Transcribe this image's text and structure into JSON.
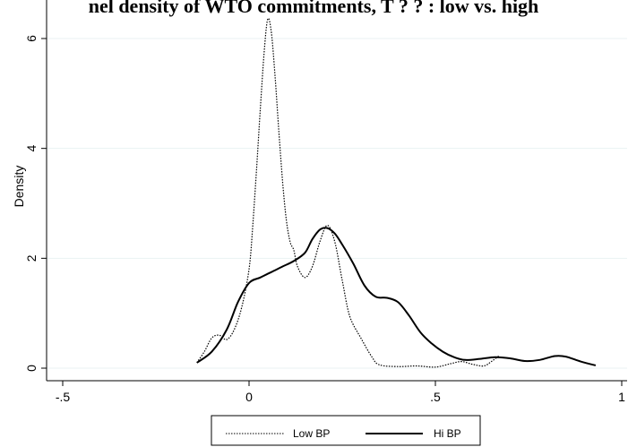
{
  "chart_data": {
    "type": "line",
    "title": "nel density of WTO commitments, T ? ? : low vs. high",
    "xlabel": "",
    "ylabel": "Density",
    "xlim": [
      -0.5,
      1.0
    ],
    "ylim": [
      0,
      6.5
    ],
    "x_ticks": [
      -0.5,
      0,
      0.5,
      1
    ],
    "x_tick_labels": [
      "-.5",
      "0",
      ".5",
      "1"
    ],
    "y_ticks": [
      0,
      2,
      4,
      6
    ],
    "y_tick_labels": [
      "0",
      "2",
      "4",
      "6"
    ],
    "grid": "horizontal",
    "legend_position": "bottom",
    "series": [
      {
        "name": "Low BP",
        "style": "dotted",
        "color": "#000000",
        "points": [
          [
            -0.14,
            0.1
          ],
          [
            -0.12,
            0.3
          ],
          [
            -0.1,
            0.55
          ],
          [
            -0.08,
            0.6
          ],
          [
            -0.06,
            0.52
          ],
          [
            -0.04,
            0.7
          ],
          [
            -0.02,
            1.1
          ],
          [
            0.0,
            1.8
          ],
          [
            0.01,
            2.6
          ],
          [
            0.02,
            3.6
          ],
          [
            0.03,
            4.7
          ],
          [
            0.04,
            5.7
          ],
          [
            0.05,
            6.35
          ],
          [
            0.06,
            6.1
          ],
          [
            0.07,
            5.3
          ],
          [
            0.08,
            4.3
          ],
          [
            0.09,
            3.4
          ],
          [
            0.1,
            2.7
          ],
          [
            0.11,
            2.3
          ],
          [
            0.12,
            2.15
          ],
          [
            0.13,
            1.85
          ],
          [
            0.15,
            1.65
          ],
          [
            0.17,
            1.85
          ],
          [
            0.19,
            2.3
          ],
          [
            0.21,
            2.6
          ],
          [
            0.23,
            2.3
          ],
          [
            0.25,
            1.6
          ],
          [
            0.27,
            0.95
          ],
          [
            0.3,
            0.55
          ],
          [
            0.33,
            0.2
          ],
          [
            0.35,
            0.06
          ],
          [
            0.4,
            0.03
          ],
          [
            0.45,
            0.04
          ],
          [
            0.5,
            0.02
          ],
          [
            0.54,
            0.08
          ],
          [
            0.57,
            0.12
          ],
          [
            0.6,
            0.07
          ],
          [
            0.63,
            0.04
          ],
          [
            0.65,
            0.12
          ],
          [
            0.67,
            0.22
          ]
        ]
      },
      {
        "name": "Hi BP",
        "style": "solid",
        "color": "#000000",
        "points": [
          [
            -0.14,
            0.1
          ],
          [
            -0.1,
            0.3
          ],
          [
            -0.06,
            0.7
          ],
          [
            -0.03,
            1.2
          ],
          [
            0.0,
            1.55
          ],
          [
            0.03,
            1.65
          ],
          [
            0.06,
            1.75
          ],
          [
            0.09,
            1.85
          ],
          [
            0.12,
            1.95
          ],
          [
            0.15,
            2.1
          ],
          [
            0.17,
            2.35
          ],
          [
            0.19,
            2.52
          ],
          [
            0.21,
            2.55
          ],
          [
            0.23,
            2.45
          ],
          [
            0.25,
            2.25
          ],
          [
            0.28,
            1.9
          ],
          [
            0.31,
            1.5
          ],
          [
            0.34,
            1.3
          ],
          [
            0.37,
            1.28
          ],
          [
            0.4,
            1.2
          ],
          [
            0.43,
            0.95
          ],
          [
            0.46,
            0.65
          ],
          [
            0.49,
            0.45
          ],
          [
            0.52,
            0.3
          ],
          [
            0.55,
            0.2
          ],
          [
            0.58,
            0.15
          ],
          [
            0.62,
            0.17
          ],
          [
            0.66,
            0.2
          ],
          [
            0.7,
            0.18
          ],
          [
            0.74,
            0.13
          ],
          [
            0.78,
            0.15
          ],
          [
            0.82,
            0.22
          ],
          [
            0.85,
            0.21
          ],
          [
            0.89,
            0.12
          ],
          [
            0.93,
            0.05
          ]
        ]
      }
    ]
  }
}
